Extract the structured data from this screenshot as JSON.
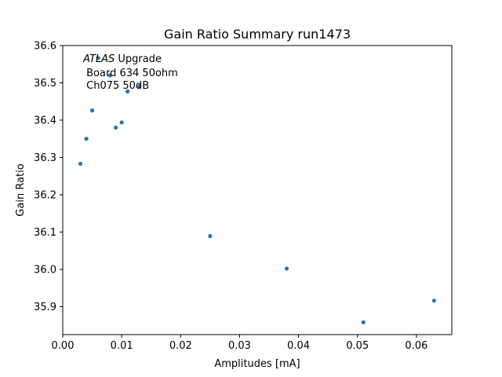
{
  "chart_data": {
    "type": "scatter",
    "title": "Gain Ratio Summary run1473",
    "xlabel": "Amplitudes [mA]",
    "ylabel": "Gain Ratio",
    "xlim": [
      0.0,
      0.066
    ],
    "ylim": [
      35.825,
      36.6
    ],
    "xticks": [
      "0.00",
      "0.01",
      "0.02",
      "0.03",
      "0.04",
      "0.05",
      "0.06"
    ],
    "yticks": [
      "35.9",
      "36.0",
      "36.1",
      "36.2",
      "36.3",
      "36.4",
      "36.5",
      "36.6"
    ],
    "grid": false,
    "marker_color": "#1f77b4",
    "annotations": {
      "atlas": "ATLAS",
      "upgrade": " Upgrade",
      "board": " Board 634 50ohm",
      "channel": " Ch075 50dB"
    },
    "series": [
      {
        "x": [
          0.003,
          0.004,
          0.005,
          0.006,
          0.008,
          0.009,
          0.01,
          0.011,
          0.013,
          0.025,
          0.038,
          0.051,
          0.063
        ],
        "y": [
          36.283,
          36.35,
          36.426,
          36.567,
          36.52,
          36.38,
          36.394,
          36.477,
          36.491,
          36.089,
          36.002,
          35.858,
          35.916
        ]
      }
    ]
  }
}
